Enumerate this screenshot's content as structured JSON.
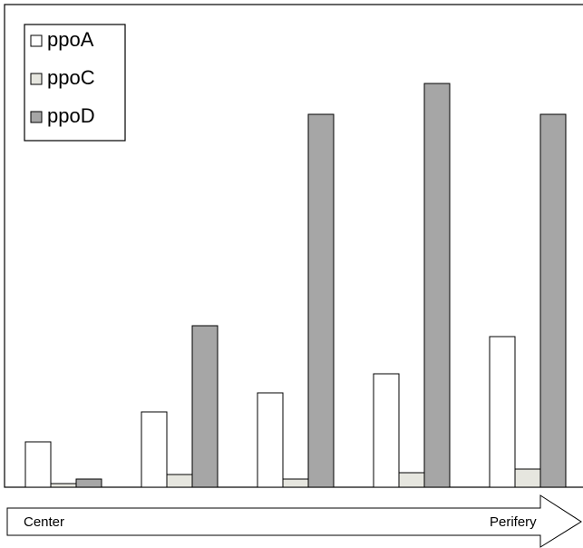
{
  "chart_data": {
    "type": "bar",
    "categories": [
      null,
      null,
      null,
      null,
      null
    ],
    "series": [
      {
        "name": "ppoA",
        "color": "#ffffff",
        "values": [
          50,
          83,
          104,
          125,
          166
        ]
      },
      {
        "name": "ppoC",
        "color": "#e6e6df",
        "values": [
          4,
          14,
          9,
          16,
          20
        ]
      },
      {
        "name": "ppoD",
        "color": "#a6a6a6",
        "values": [
          9,
          178,
          411,
          445,
          411
        ]
      }
    ],
    "legend": "top-left",
    "annotations": [
      "Center",
      "Perifery"
    ]
  }
}
